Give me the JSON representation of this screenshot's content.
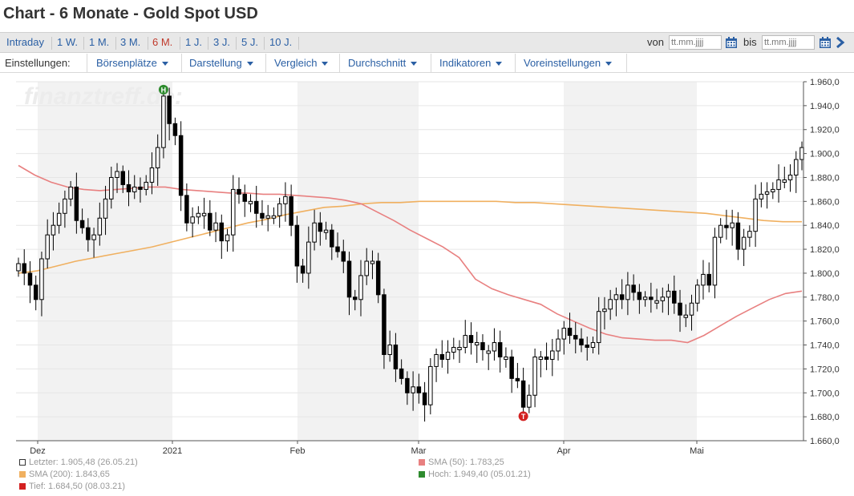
{
  "page": {
    "title": "Chart - 6 Monate - Gold Spot USD"
  },
  "ranges": [
    "Intraday",
    "1 W.",
    "1 M.",
    "3 M.",
    "6 M.",
    "1 J.",
    "3 J.",
    "5 J.",
    "10 J."
  ],
  "active_range": "6 M.",
  "date_filter": {
    "from_label": "von",
    "to_label": "bis",
    "placeholder": "tt.mm.jjjj"
  },
  "settings": {
    "label": "Einstellungen:",
    "menus": [
      "Börsenplätze",
      "Darstellung",
      "Vergleich",
      "Durchschnitt",
      "Indikatoren",
      "Voreinstellungen"
    ]
  },
  "icons": {
    "calendar": "calendar-icon",
    "next": "chevron-right-icon",
    "high_marker": "high-marker-icon",
    "low_marker": "low-marker-icon"
  },
  "colors": {
    "sma50": "#e88080",
    "sma200": "#f0b060",
    "bull": "#ffffff",
    "bear": "#000000",
    "high": "#2e8b2e",
    "low": "#d32020",
    "link": "#2a5fa4",
    "active": "#c0392b"
  },
  "chart_data": {
    "type": "candlestick",
    "watermark": "finanztreff.de:",
    "y_range": [
      1660,
      1960
    ],
    "y_ticks": [
      "1.960,0",
      "1.940,0",
      "1.920,0",
      "1.900,0",
      "1.880,0",
      "1.860,0",
      "1.840,0",
      "1.820,0",
      "1.800,0",
      "1.780,0",
      "1.760,0",
      "1.740,0",
      "1.720,0",
      "1.700,0",
      "1.680,0",
      "1.660,0"
    ],
    "x_labels": [
      "Dez",
      "2021",
      "Feb",
      "Mar",
      "Apr",
      "Mai"
    ],
    "shaded_months": [
      "Dez",
      "Feb",
      "Apr"
    ],
    "closes": [
      1808,
      1800,
      1790,
      1778,
      1812,
      1832,
      1840,
      1850,
      1862,
      1872,
      1844,
      1838,
      1828,
      1832,
      1846,
      1862,
      1880,
      1885,
      1874,
      1868,
      1872,
      1870,
      1876,
      1888,
      1905,
      1948,
      1925,
      1915,
      1865,
      1842,
      1847,
      1850,
      1850,
      1836,
      1842,
      1827,
      1832,
      1870,
      1866,
      1860,
      1860,
      1850,
      1846,
      1848,
      1848,
      1858,
      1864,
      1840,
      1806,
      1800,
      1826,
      1842,
      1835,
      1836,
      1822,
      1818,
      1810,
      1780,
      1778,
      1798,
      1810,
      1810,
      1782,
      1732,
      1740,
      1720,
      1712,
      1700,
      1705,
      1700,
      1690,
      1722,
      1732,
      1728,
      1734,
      1738,
      1738,
      1748,
      1742,
      1742,
      1736,
      1735,
      1742,
      1730,
      1730,
      1712,
      1710,
      1688,
      1698,
      1730,
      1730,
      1728,
      1735,
      1745,
      1754,
      1748,
      1745,
      1740,
      1738,
      1742,
      1768,
      1770,
      1778,
      1782,
      1778,
      1790,
      1784,
      1778,
      1780,
      1778,
      1777,
      1780,
      1785,
      1775,
      1765,
      1765,
      1775,
      1790,
      1799,
      1790,
      1830,
      1840,
      1838,
      1842,
      1820,
      1830,
      1835,
      1862,
      1866,
      1868,
      1870,
      1878,
      1878,
      1882,
      1895,
      1905
    ],
    "sma50": [
      1890,
      1882,
      1876,
      1872,
      1870,
      1869,
      1870,
      1871,
      1872,
      1872,
      1870,
      1869,
      1868,
      1867,
      1867,
      1866,
      1866,
      1865,
      1864,
      1863,
      1861,
      1858,
      1851,
      1844,
      1836,
      1829,
      1822,
      1813,
      1795,
      1787,
      1782,
      1778,
      1774,
      1766,
      1760,
      1754,
      1749,
      1746,
      1745,
      1744,
      1744,
      1742,
      1748,
      1756,
      1764,
      1771,
      1778,
      1783,
      1785
    ],
    "sma200": [
      1800,
      1802,
      1806,
      1810,
      1813,
      1816,
      1819,
      1822,
      1826,
      1830,
      1834,
      1838,
      1842,
      1845,
      1849,
      1852,
      1855,
      1856,
      1858,
      1859,
      1859,
      1860,
      1860,
      1860,
      1860,
      1860,
      1859,
      1859,
      1858,
      1857,
      1856,
      1855,
      1854,
      1853,
      1852,
      1851,
      1850,
      1848,
      1846,
      1844,
      1843,
      1843
    ],
    "legend": [
      {
        "label": "Letzter: 1.905,48 (26.05.21)",
        "color": "#ffffff"
      },
      {
        "label": "SMA (50): 1.783,25",
        "color": "#e88080"
      },
      {
        "label": "SMA (200): 1.843,65",
        "color": "#f0b060"
      },
      {
        "label": "Hoch: 1.949,40 (05.01.21)",
        "color": "#2e8b2e"
      },
      {
        "label": "Tief: 1.684,50 (08.03.21)",
        "color": "#d32020"
      }
    ],
    "high": {
      "value": 1949.4,
      "label": "H"
    },
    "low": {
      "value": 1684.5,
      "label": "T"
    }
  }
}
